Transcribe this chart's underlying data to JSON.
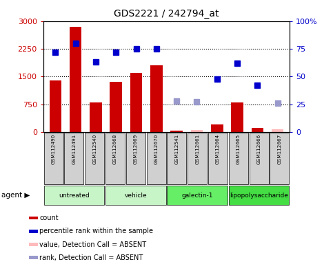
{
  "title": "GDS2221 / 242794_at",
  "samples": [
    "GSM112490",
    "GSM112491",
    "GSM112540",
    "GSM112668",
    "GSM112669",
    "GSM112670",
    "GSM112541",
    "GSM112661",
    "GSM112664",
    "GSM112665",
    "GSM112666",
    "GSM112667"
  ],
  "groups": [
    {
      "label": "untreated",
      "indices": [
        0,
        1,
        2
      ],
      "color": "#c8f5c8"
    },
    {
      "label": "vehicle",
      "indices": [
        3,
        4,
        5
      ],
      "color": "#c8f5c8"
    },
    {
      "label": "galectin-1",
      "indices": [
        6,
        7,
        8
      ],
      "color": "#66ee66"
    },
    {
      "label": "lipopolysaccharide",
      "indices": [
        9,
        10,
        11
      ],
      "color": "#44dd44"
    }
  ],
  "count": [
    1400,
    2850,
    800,
    1350,
    1600,
    1800,
    30,
    null,
    200,
    800,
    120,
    null
  ],
  "count_absent": [
    null,
    null,
    null,
    null,
    null,
    null,
    null,
    60,
    null,
    null,
    null,
    75
  ],
  "percentile": [
    72,
    80,
    63,
    72,
    75,
    75,
    null,
    null,
    48,
    62,
    42,
    null
  ],
  "percentile_absent": [
    null,
    null,
    null,
    null,
    null,
    null,
    28,
    27,
    null,
    null,
    null,
    26
  ],
  "ylim_left": [
    0,
    3000
  ],
  "ylim_right": [
    0,
    100
  ],
  "yticks_left": [
    0,
    750,
    1500,
    2250,
    3000
  ],
  "yticks_right": [
    0,
    25,
    50,
    75,
    100
  ],
  "bar_color": "#cc0000",
  "absent_bar_color": "#ffbbbb",
  "dot_color": "#0000cc",
  "absent_dot_color": "#9999cc",
  "leg_labels": [
    "count",
    "percentile rank within the sample",
    "value, Detection Call = ABSENT",
    "rank, Detection Call = ABSENT"
  ]
}
